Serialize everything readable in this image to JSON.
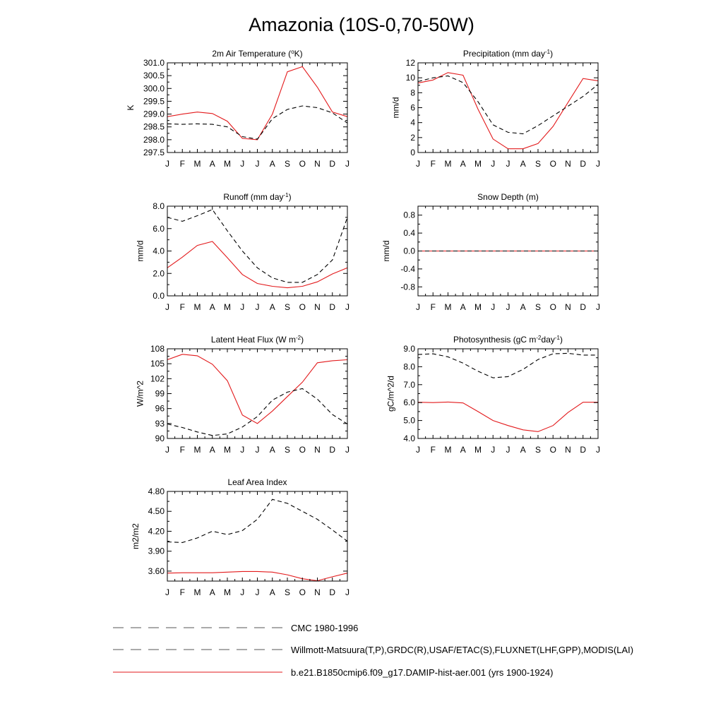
{
  "figure_title": "Amazonia (10S-0,70-50W)",
  "months": [
    "J",
    "F",
    "M",
    "A",
    "M",
    "J",
    "J",
    "A",
    "S",
    "O",
    "N",
    "D",
    "J"
  ],
  "legend": [
    {
      "label": "CMC 1980-1996",
      "color": "#555555",
      "style": "dashed"
    },
    {
      "label": "Willmott-Matsuura(T,P),GRDC(R),USAF/ETAC(S),FLUXNET(LHF,GPP),MODIS(LAI)",
      "color": "#555555",
      "style": "dashed"
    },
    {
      "label": "b.e21.B1850cmip6.f09_g17.DAMIP-hist-aer.001 (yrs 1900-1924)",
      "color": "#e31a1c",
      "style": "solid"
    }
  ],
  "chart_data": [
    {
      "type": "line",
      "title": "2m Air Temperature (°K)",
      "title_parts": [
        "2m Air Temperature (",
        "o",
        "K)"
      ],
      "ylabel": "K",
      "ylim": [
        297.5,
        301.0
      ],
      "yticks": [
        "297.5",
        "298.0",
        "298.5",
        "299.0",
        "299.5",
        "300.0",
        "300.5",
        "301.0"
      ],
      "series": [
        {
          "style": "solid",
          "color": "#e31a1c",
          "values": [
            298.9,
            299.0,
            299.08,
            299.02,
            298.72,
            298.05,
            298.0,
            299.0,
            300.65,
            300.85,
            300.05,
            299.08,
            298.9
          ]
        },
        {
          "style": "dashed",
          "color": "#000000",
          "values": [
            298.62,
            298.6,
            298.62,
            298.6,
            298.5,
            298.12,
            298.02,
            298.82,
            299.18,
            299.32,
            299.25,
            299.05,
            298.65
          ]
        }
      ]
    },
    {
      "type": "line",
      "title": "Precipitation (mm day-1)",
      "title_parts": [
        "Precipitation (mm day",
        "-1",
        ")"
      ],
      "ylabel": "mm/d",
      "ylim": [
        0,
        12
      ],
      "yticks": [
        "0",
        "2",
        "4",
        "6",
        "8",
        "10",
        "12"
      ],
      "series": [
        {
          "style": "solid",
          "color": "#e31a1c",
          "values": [
            9.3,
            9.7,
            10.7,
            10.35,
            5.8,
            1.8,
            0.5,
            0.5,
            1.2,
            3.5,
            6.7,
            9.9,
            9.6
          ]
        },
        {
          "style": "dashed",
          "color": "#000000",
          "values": [
            9.5,
            10.0,
            10.25,
            9.35,
            6.8,
            3.7,
            2.7,
            2.5,
            3.6,
            4.9,
            6.2,
            7.5,
            9.1
          ]
        }
      ]
    },
    {
      "type": "line",
      "title": "Runoff (mm day-1)",
      "title_parts": [
        "Runoff (mm day",
        "-1",
        ")"
      ],
      "ylabel": "mm/d",
      "ylim": [
        0,
        8
      ],
      "yticks": [
        "0.0",
        "2.0",
        "4.0",
        "6.0",
        "8.0"
      ],
      "series": [
        {
          "style": "solid",
          "color": "#e31a1c",
          "values": [
            2.5,
            3.45,
            4.5,
            4.85,
            3.4,
            1.9,
            1.1,
            0.85,
            0.72,
            0.85,
            1.25,
            1.95,
            2.5
          ]
        },
        {
          "style": "dashed",
          "color": "#000000",
          "values": [
            7.0,
            6.65,
            7.15,
            7.7,
            5.8,
            4.0,
            2.5,
            1.6,
            1.2,
            1.2,
            1.9,
            3.2,
            7.0
          ]
        }
      ]
    },
    {
      "type": "line",
      "title": "Snow Depth (m)",
      "title_parts": [
        "Snow Depth (m)",
        "",
        ""
      ],
      "ylabel": "mm/d",
      "ylim": [
        -1.0,
        1.0
      ],
      "yticks": [
        "-0.8",
        "-0.4",
        "0.0",
        "0.4",
        "0.8"
      ],
      "series": [
        {
          "style": "solid",
          "color": "#e31a1c",
          "values": [
            0,
            0,
            0,
            0,
            0,
            0,
            0,
            0,
            0,
            0,
            0,
            0,
            0
          ]
        },
        {
          "style": "dashed",
          "color": "#000000",
          "values": [
            0,
            0,
            0,
            0,
            0,
            0,
            0,
            0,
            0,
            0,
            0,
            0,
            0
          ]
        }
      ]
    },
    {
      "type": "line",
      "title": "Latent Heat Flux (W m-2)",
      "title_parts": [
        "Latent Heat Flux (W m",
        "-2",
        ")"
      ],
      "ylabel": "W/m^2",
      "ylim": [
        90,
        108
      ],
      "yticks": [
        "90",
        "93",
        "96",
        "99",
        "102",
        "105",
        "108"
      ],
      "series": [
        {
          "style": "solid",
          "color": "#e31a1c",
          "values": [
            105.8,
            106.9,
            106.6,
            104.9,
            101.6,
            94.7,
            93.0,
            95.5,
            98.4,
            101.3,
            105.2,
            105.6,
            105.8
          ]
        },
        {
          "style": "dashed",
          "color": "#000000",
          "values": [
            92.9,
            92.2,
            91.3,
            90.6,
            90.9,
            92.3,
            94.4,
            97.7,
            99.3,
            100.0,
            97.9,
            94.8,
            92.9
          ]
        }
      ]
    },
    {
      "type": "line",
      "title": "Photosynthesis (gC m-2day-1)",
      "title_parts": [
        "Photosynthesis (gC m",
        "-2",
        "day",
        "-1",
        ")"
      ],
      "ylabel": "gC/m^2/d",
      "ylim": [
        4.0,
        9.0
      ],
      "yticks": [
        "4.0",
        "5.0",
        "6.0",
        "7.0",
        "8.0",
        "9.0"
      ],
      "series": [
        {
          "style": "solid",
          "color": "#e31a1c",
          "values": [
            6.02,
            6.0,
            6.03,
            5.98,
            5.5,
            5.0,
            4.72,
            4.48,
            4.38,
            4.72,
            5.45,
            6.02,
            6.02
          ]
        },
        {
          "style": "dashed",
          "color": "#000000",
          "values": [
            8.68,
            8.72,
            8.55,
            8.2,
            7.75,
            7.38,
            7.45,
            7.85,
            8.4,
            8.72,
            8.75,
            8.65,
            8.65
          ]
        }
      ]
    },
    {
      "type": "line",
      "title": "Leaf Area Index",
      "title_parts": [
        "Leaf Area Index",
        "",
        ""
      ],
      "ylabel": "m2/m2",
      "ylim": [
        3.45,
        4.8
      ],
      "yticks": [
        "3.60",
        "3.90",
        "4.20",
        "4.50",
        "4.80"
      ],
      "series": [
        {
          "style": "solid",
          "color": "#e31a1c",
          "values": [
            3.57,
            3.575,
            3.575,
            3.575,
            3.585,
            3.595,
            3.595,
            3.585,
            3.545,
            3.485,
            3.455,
            3.515,
            3.57
          ]
        },
        {
          "style": "dashed",
          "color": "#000000",
          "values": [
            4.04,
            4.03,
            4.1,
            4.2,
            4.15,
            4.21,
            4.38,
            4.68,
            4.62,
            4.5,
            4.38,
            4.22,
            4.05
          ]
        }
      ]
    }
  ]
}
